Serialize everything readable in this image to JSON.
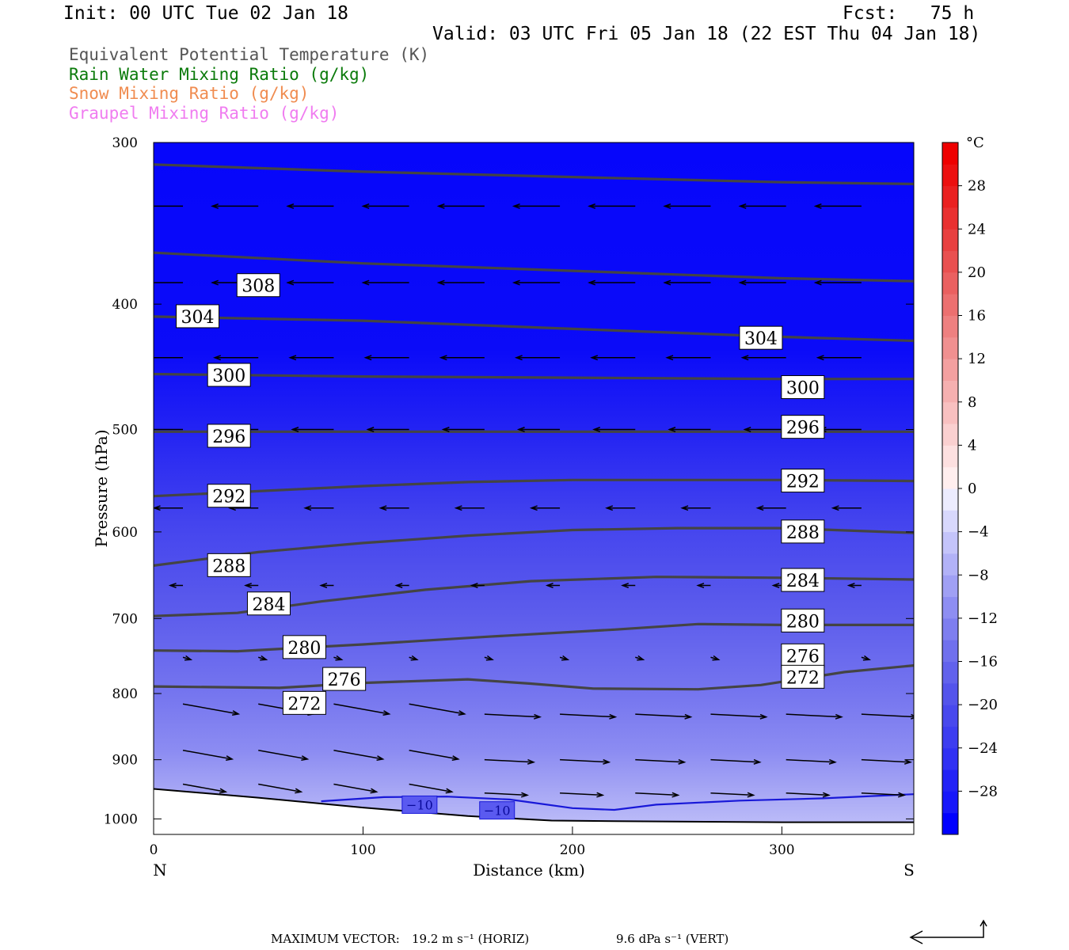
{
  "header": {
    "init": "Init: 00 UTC Tue 02 Jan 18",
    "fcst": "Fcst:   75 h",
    "valid": "Valid: 03 UTC Fri 05 Jan 18 (22 EST Thu 04 Jan 18)"
  },
  "fields": [
    {
      "label": "Equivalent Potential Temperature (K)",
      "color": "#555555"
    },
    {
      "label": "Rain Water Mixing Ratio (g/kg)",
      "color": "#0a7a0a"
    },
    {
      "label": "Snow Mixing Ratio (g/kg)",
      "color": "#f08c50"
    },
    {
      "label": "Graupel Mixing Ratio (g/kg)",
      "color": "#f07cf0"
    }
  ],
  "footer": {
    "max_vector_label": "MAXIMUM VECTOR:",
    "horiz": "19.2 m s⁻¹ (HORIZ)",
    "vert": "9.6 dPa s⁻¹ (VERT)"
  },
  "chart_data": {
    "type": "cross-section",
    "xlabel": "Distance (km)",
    "ylabel": "Pressure (hPa)",
    "xlim": [
      0,
      363
    ],
    "ylim": [
      1028,
      300
    ],
    "y_log": true,
    "x_ticks": [
      0,
      100,
      200,
      300
    ],
    "y_ticks": [
      300,
      400,
      500,
      600,
      700,
      800,
      900,
      1000
    ],
    "endpoints": {
      "left": "N",
      "right": "S"
    },
    "colorbar": {
      "unit": "°C",
      "levels": [
        -32,
        -30,
        -28,
        -26,
        -24,
        -22,
        -20,
        -18,
        -16,
        -14,
        -12,
        -10,
        -8,
        -6,
        -4,
        -2,
        0,
        2,
        4,
        6,
        8,
        10,
        12,
        14,
        16,
        18,
        20,
        22,
        24,
        26,
        28,
        30,
        32
      ],
      "labels": [
        28,
        24,
        20,
        16,
        12,
        8,
        4,
        0,
        -4,
        -8,
        -12,
        -16,
        -20,
        -24,
        -28
      ],
      "colors": [
        "#0000ff",
        "#1717fa",
        "#2222f6",
        "#3131f3",
        "#3d3df0",
        "#4848ed",
        "#5454eb",
        "#6262ec",
        "#7070ed",
        "#7e7eef",
        "#8e8ef2",
        "#a0a0f4",
        "#b2b2f7",
        "#c4c4fa",
        "#d8d8fc",
        "#ececfe",
        "#ffeeee",
        "#fde0e0",
        "#fad0d0",
        "#f8c0c0",
        "#f5b0b0",
        "#f3a0a0",
        "#f09090",
        "#ee8080",
        "#ec7070",
        "#ea6060",
        "#e95050",
        "#e84040",
        "#e93030",
        "#ea2020",
        "#ec1010",
        "#ee0000"
      ]
    },
    "theta_e_contours": [
      {
        "value": 308,
        "points": [
          [
            0,
            312
          ],
          [
            100,
            316
          ],
          [
            200,
            319
          ],
          [
            300,
            322
          ],
          [
            363,
            323
          ]
        ],
        "label_at": [
          [
            50,
            387
          ]
        ]
      },
      {
        "value": 304,
        "points": [
          [
            0,
            365
          ],
          [
            100,
            372
          ],
          [
            200,
            377
          ],
          [
            300,
            382
          ],
          [
            363,
            384
          ]
        ],
        "label_at": [
          [
            21,
            409
          ],
          [
            290,
            425
          ]
        ]
      },
      {
        "value": 300,
        "points": [
          [
            0,
            409
          ],
          [
            100,
            412
          ],
          [
            200,
            418
          ],
          [
            300,
            424
          ],
          [
            363,
            427
          ]
        ],
        "label_at": [
          [
            36,
            454
          ],
          [
            310,
            464
          ]
        ]
      },
      {
        "value": 296,
        "points": [
          [
            0,
            453
          ],
          [
            100,
            455
          ],
          [
            200,
            456
          ],
          [
            300,
            457
          ],
          [
            363,
            457
          ]
        ],
        "label_at": [
          [
            36,
            506
          ],
          [
            310,
            498
          ]
        ]
      },
      {
        "value": 292,
        "points": [
          [
            0,
            502
          ],
          [
            100,
            502
          ],
          [
            200,
            502
          ],
          [
            300,
            502
          ],
          [
            363,
            502
          ]
        ],
        "label_at": [
          [
            36,
            563
          ],
          [
            310,
            548
          ]
        ]
      },
      {
        "value": 288,
        "points": [
          [
            0,
            563
          ],
          [
            50,
            558
          ],
          [
            100,
            553
          ],
          [
            150,
            549
          ],
          [
            200,
            547
          ],
          [
            300,
            547
          ],
          [
            363,
            548
          ]
        ],
        "label_at": [
          [
            36,
            637
          ],
          [
            310,
            600
          ]
        ]
      },
      {
        "value": 284,
        "points": [
          [
            0,
            637
          ],
          [
            50,
            622
          ],
          [
            100,
            612
          ],
          [
            150,
            604
          ],
          [
            200,
            598
          ],
          [
            250,
            596
          ],
          [
            300,
            596
          ],
          [
            363,
            601
          ]
        ],
        "label_at": [
          [
            55,
            682
          ],
          [
            310,
            654
          ]
        ]
      },
      {
        "value": 280,
        "points": [
          [
            0,
            697
          ],
          [
            40,
            693
          ],
          [
            80,
            679
          ],
          [
            130,
            665
          ],
          [
            180,
            655
          ],
          [
            240,
            650
          ],
          [
            300,
            651
          ],
          [
            363,
            653
          ]
        ],
        "label_at": [
          [
            72,
            737
          ],
          [
            310,
            703
          ]
        ]
      },
      {
        "value": 276,
        "points": [
          [
            0,
            741
          ],
          [
            40,
            742
          ],
          [
            100,
            733
          ],
          [
            160,
            723
          ],
          [
            220,
            714
          ],
          [
            260,
            707
          ],
          [
            300,
            708
          ],
          [
            363,
            708
          ]
        ],
        "label_at": [
          [
            91,
            780
          ],
          [
            310,
            748
          ]
        ]
      },
      {
        "value": 272,
        "points": [
          [
            0,
            790
          ],
          [
            60,
            792
          ],
          [
            100,
            785
          ],
          [
            150,
            780
          ],
          [
            180,
            786
          ],
          [
            210,
            793
          ],
          [
            260,
            794
          ],
          [
            290,
            788
          ],
          [
            330,
            770
          ],
          [
            363,
            761
          ]
        ],
        "label_at": [
          [
            72,
            814
          ],
          [
            310,
            777
          ]
        ]
      }
    ],
    "isotherm_minus10": {
      "value": -10,
      "points": [
        [
          80,
          969
        ],
        [
          110,
          962
        ],
        [
          140,
          961
        ],
        [
          170,
          966
        ],
        [
          200,
          981
        ],
        [
          220,
          984
        ],
        [
          240,
          975
        ],
        [
          280,
          968
        ],
        [
          320,
          964
        ],
        [
          363,
          957
        ]
      ],
      "label_at": [
        [
          127,
          975
        ],
        [
          164,
          985
        ]
      ]
    },
    "terrain": {
      "points": [
        [
          0,
          948
        ],
        [
          50,
          963
        ],
        [
          100,
          980
        ],
        [
          150,
          995
        ],
        [
          190,
          1003
        ],
        [
          220,
          1004
        ],
        [
          300,
          1006
        ],
        [
          363,
          1006
        ]
      ]
    },
    "rain_mixing_ratio": [],
    "snow_mixing_ratio": [],
    "graupel_mixing_ratio": []
  }
}
